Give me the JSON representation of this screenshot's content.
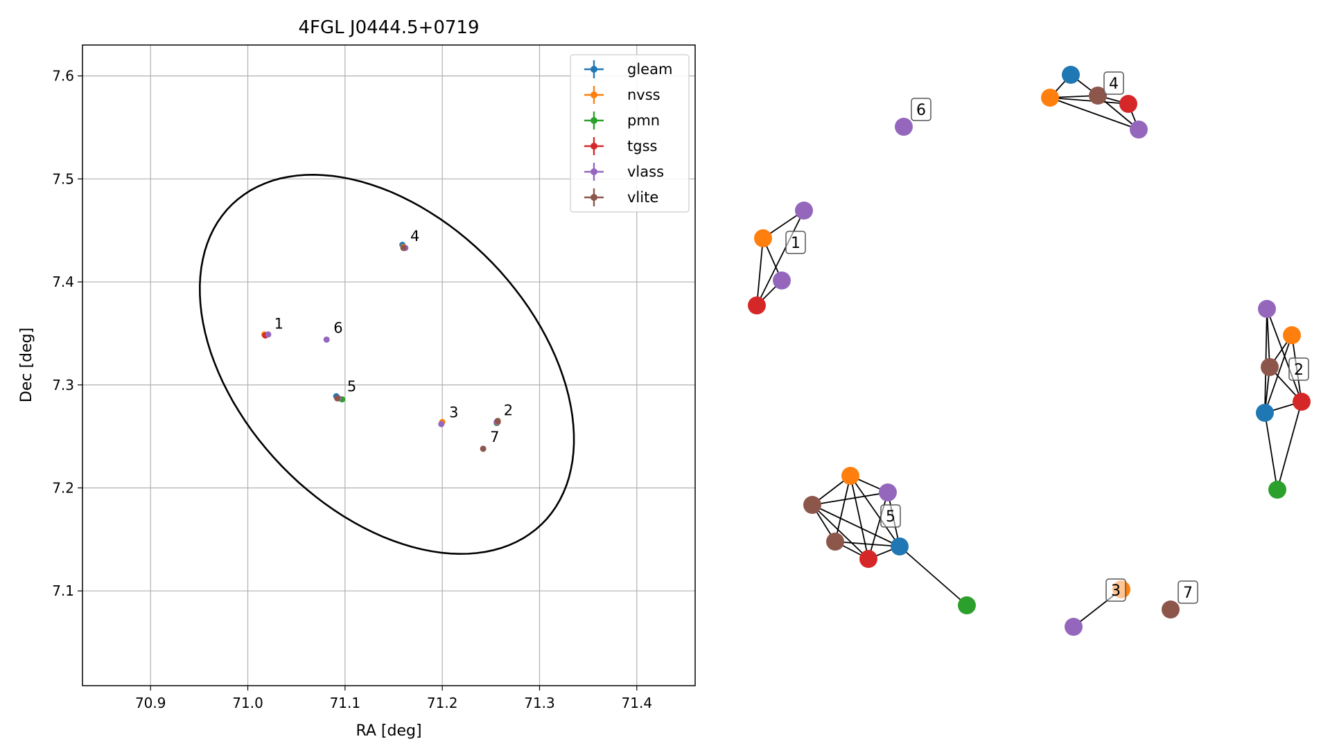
{
  "chart_data": [
    {
      "type": "scatter",
      "title": "4FGL J0444.5+0719",
      "xlabel": "RA [deg]",
      "ylabel": "Dec [deg]",
      "xlim": [
        70.83,
        71.46
      ],
      "ylim": [
        7.008,
        7.63
      ],
      "xticks": [
        70.9,
        71.0,
        71.1,
        71.2,
        71.3,
        71.4
      ],
      "yticks": [
        7.1,
        7.2,
        7.3,
        7.4,
        7.5,
        7.6
      ],
      "xtick_labels": [
        "70.9",
        "71.0",
        "71.1",
        "71.2",
        "71.3",
        "71.4"
      ],
      "ytick_labels": [
        "7.1",
        "7.2",
        "7.3",
        "7.4",
        "7.5",
        "7.6"
      ],
      "grid": true,
      "legend": "top-right",
      "series": [
        {
          "name": "gleam",
          "color": "#1f77b4",
          "points": [
            [
              71.159,
              7.436
            ],
            [
              71.091,
              7.289
            ]
          ]
        },
        {
          "name": "nvss",
          "color": "#ff7f0e",
          "points": [
            [
              71.017,
              7.349
            ],
            [
              71.16,
              7.434
            ],
            [
              71.2,
              7.264
            ],
            [
              71.256,
              7.264
            ]
          ]
        },
        {
          "name": "pmn",
          "color": "#2ca02c",
          "points": [
            [
              71.097,
              7.286
            ],
            [
              71.256,
              7.263
            ]
          ]
        },
        {
          "name": "tgss",
          "color": "#d62728",
          "points": [
            [
              71.018,
              7.348
            ],
            [
              71.161,
              7.433
            ],
            [
              71.093,
              7.287
            ],
            [
              71.257,
              7.264
            ]
          ]
        },
        {
          "name": "vlass",
          "color": "#9467bd",
          "points": [
            [
              71.021,
              7.349
            ],
            [
              71.162,
              7.433
            ],
            [
              71.081,
              7.344
            ],
            [
              71.093,
              7.287
            ],
            [
              71.199,
              7.262
            ],
            [
              71.256,
              7.264
            ]
          ]
        },
        {
          "name": "vlite",
          "color": "#8c564b",
          "points": [
            [
              71.16,
              7.433
            ],
            [
              71.092,
              7.287
            ],
            [
              71.257,
              7.265
            ],
            [
              71.242,
              7.238
            ]
          ]
        }
      ],
      "annotations": [
        {
          "text": "1",
          "x": 71.02,
          "y": 7.352
        },
        {
          "text": "2",
          "x": 71.256,
          "y": 7.268
        },
        {
          "text": "3",
          "x": 71.2,
          "y": 7.266
        },
        {
          "text": "4",
          "x": 71.16,
          "y": 7.437
        },
        {
          "text": "5",
          "x": 71.095,
          "y": 7.291
        },
        {
          "text": "6",
          "x": 71.081,
          "y": 7.348
        },
        {
          "text": "7",
          "x": 71.242,
          "y": 7.242
        }
      ],
      "ellipse": {
        "center": [
          71.143,
          7.32
        ],
        "semi_major_deg": 0.216,
        "semi_minor_deg": 0.142,
        "angle_deg": -46
      }
    },
    {
      "type": "network",
      "axes": "off",
      "groups": [
        "1",
        "2",
        "3",
        "4",
        "5",
        "6",
        "7"
      ],
      "nodes": [
        {
          "id": "n1",
          "survey": "nvss",
          "color": "#ff7f0e",
          "group": "1"
        },
        {
          "id": "v1",
          "survey": "vlass",
          "color": "#9467bd",
          "group": "1"
        },
        {
          "id": "v1b",
          "survey": "vlass",
          "color": "#9467bd",
          "group": "1"
        },
        {
          "id": "t1",
          "survey": "tgss",
          "color": "#d62728",
          "group": "1"
        },
        {
          "id": "v2",
          "survey": "vlass",
          "color": "#9467bd",
          "group": "2"
        },
        {
          "id": "n2",
          "survey": "nvss",
          "color": "#ff7f0e",
          "group": "2"
        },
        {
          "id": "l2",
          "survey": "vlite",
          "color": "#8c564b",
          "group": "2"
        },
        {
          "id": "t2",
          "survey": "tgss",
          "color": "#d62728",
          "group": "2"
        },
        {
          "id": "g2",
          "survey": "gleam",
          "color": "#1f77b4",
          "group": "2"
        },
        {
          "id": "p2",
          "survey": "pmn",
          "color": "#2ca02c",
          "group": "2"
        },
        {
          "id": "n3",
          "survey": "nvss",
          "color": "#ff7f0e",
          "group": "3"
        },
        {
          "id": "v3",
          "survey": "vlass",
          "color": "#9467bd",
          "group": "3"
        },
        {
          "id": "g4",
          "survey": "gleam",
          "color": "#1f77b4",
          "group": "4"
        },
        {
          "id": "n4",
          "survey": "nvss",
          "color": "#ff7f0e",
          "group": "4"
        },
        {
          "id": "l4",
          "survey": "vlite",
          "color": "#8c564b",
          "group": "4"
        },
        {
          "id": "t4",
          "survey": "tgss",
          "color": "#d62728",
          "group": "4"
        },
        {
          "id": "v4",
          "survey": "vlass",
          "color": "#9467bd",
          "group": "4"
        },
        {
          "id": "n5",
          "survey": "nvss",
          "color": "#ff7f0e",
          "group": "5"
        },
        {
          "id": "v5",
          "survey": "vlass",
          "color": "#9467bd",
          "group": "5"
        },
        {
          "id": "l5a",
          "survey": "vlite",
          "color": "#8c564b",
          "group": "5"
        },
        {
          "id": "l5b",
          "survey": "vlite",
          "color": "#8c564b",
          "group": "5"
        },
        {
          "id": "t5",
          "survey": "tgss",
          "color": "#d62728",
          "group": "5"
        },
        {
          "id": "g5",
          "survey": "gleam",
          "color": "#1f77b4",
          "group": "5"
        },
        {
          "id": "p5",
          "survey": "pmn",
          "color": "#2ca02c",
          "group": "5"
        },
        {
          "id": "v6",
          "survey": "vlass",
          "color": "#9467bd",
          "group": "6"
        },
        {
          "id": "l7",
          "survey": "vlite",
          "color": "#8c564b",
          "group": "7"
        }
      ],
      "edges": [
        [
          "n1",
          "v1"
        ],
        [
          "n1",
          "v1b"
        ],
        [
          "n1",
          "t1"
        ],
        [
          "v1",
          "t1"
        ],
        [
          "v1b",
          "t1"
        ],
        [
          "v2",
          "l2"
        ],
        [
          "v2",
          "t2"
        ],
        [
          "v2",
          "g2"
        ],
        [
          "n2",
          "l2"
        ],
        [
          "n2",
          "t2"
        ],
        [
          "n2",
          "g2"
        ],
        [
          "l2",
          "t2"
        ],
        [
          "l2",
          "g2"
        ],
        [
          "t2",
          "g2"
        ],
        [
          "t2",
          "p2"
        ],
        [
          "g2",
          "p2"
        ],
        [
          "n3",
          "v3"
        ],
        [
          "g4",
          "n4"
        ],
        [
          "g4",
          "l4"
        ],
        [
          "n4",
          "l4"
        ],
        [
          "n4",
          "t4"
        ],
        [
          "n4",
          "v4"
        ],
        [
          "l4",
          "t4"
        ],
        [
          "l4",
          "v4"
        ],
        [
          "t4",
          "v4"
        ],
        [
          "n5",
          "v5"
        ],
        [
          "n5",
          "l5a"
        ],
        [
          "n5",
          "l5b"
        ],
        [
          "n5",
          "t5"
        ],
        [
          "n5",
          "g5"
        ],
        [
          "v5",
          "l5a"
        ],
        [
          "v5",
          "t5"
        ],
        [
          "v5",
          "g5"
        ],
        [
          "l5a",
          "l5b"
        ],
        [
          "l5a",
          "t5"
        ],
        [
          "l5a",
          "g5"
        ],
        [
          "l5b",
          "t5"
        ],
        [
          "l5b",
          "g5"
        ],
        [
          "t5",
          "g5"
        ],
        [
          "g5",
          "p5"
        ]
      ]
    }
  ]
}
